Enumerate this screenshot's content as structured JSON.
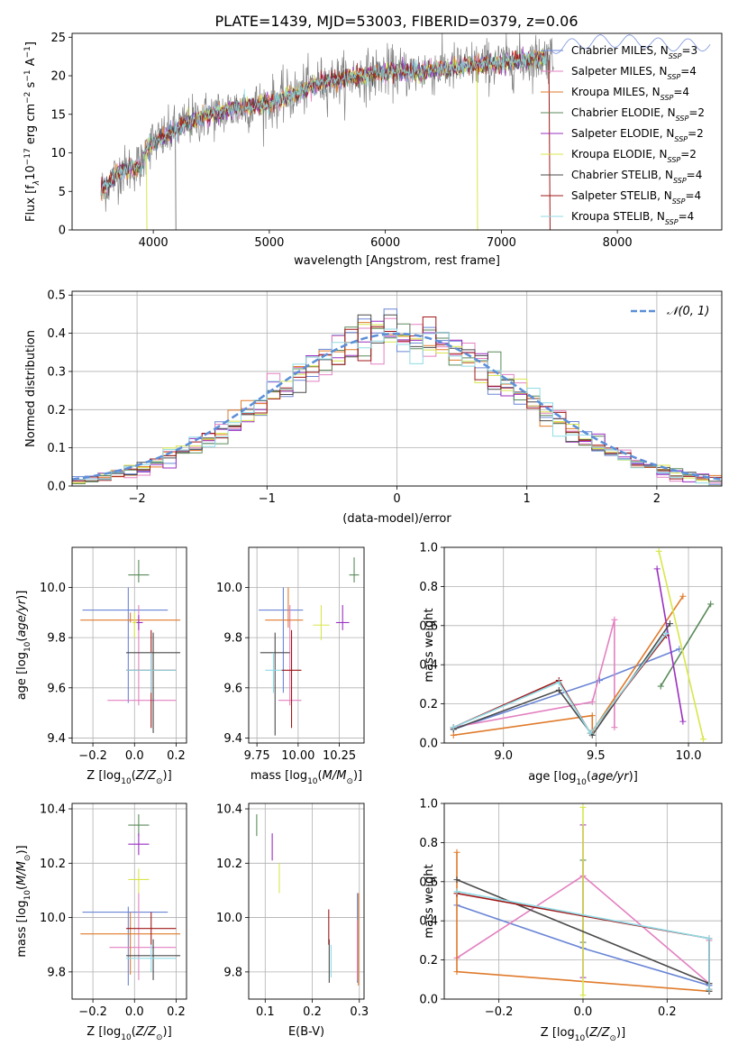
{
  "title": "PLATE=1439, MJD=53003, FIBERID=0379, z=0.06",
  "colors": [
    "#6a86d6",
    "#e380c0",
    "#e07a2a",
    "#5a8a5a",
    "#9b2fc0",
    "#d8e64a",
    "#4a4a4a",
    "#a01818",
    "#8fdbe6"
  ],
  "chart_data": [
    {
      "id": "spectrum",
      "type": "line",
      "title": "PLATE=1439, MJD=53003, FIBERID=0379, z=0.06",
      "xlabel": "wavelength [Angstrom, rest frame]",
      "ylabel_parts": [
        "Flux [f",
        "λ",
        "10",
        "−17",
        " erg cm",
        "−2",
        " s",
        "−1",
        " A",
        "−1",
        "]"
      ],
      "xlim": [
        3300,
        8900
      ],
      "ylim": [
        0,
        25.5
      ],
      "xticks": [
        4000,
        5000,
        6000,
        7000,
        8000
      ],
      "yticks": [
        0,
        5,
        10,
        15,
        20,
        25
      ],
      "legend": "right",
      "series": [
        {
          "name": "Chabrier MILES, N",
          "sub": "SSP",
          "suffix": "=3"
        },
        {
          "name": "Salpeter MILES, N",
          "sub": "SSP",
          "suffix": "=4"
        },
        {
          "name": "Kroupa MILES, N",
          "sub": "SSP",
          "suffix": "=4"
        },
        {
          "name": "Chabrier ELODIE, N",
          "sub": "SSP",
          "suffix": "=2"
        },
        {
          "name": "Salpeter ELODIE, N",
          "sub": "SSP",
          "suffix": "=2"
        },
        {
          "name": "Kroupa ELODIE, N",
          "sub": "SSP",
          "suffix": "=2"
        },
        {
          "name": "Chabrier STELIB, N",
          "sub": "SSP",
          "suffix": "=4"
        },
        {
          "name": "Salpeter STELIB, N",
          "sub": "SSP",
          "suffix": "=4"
        },
        {
          "name": "Kroupa STELIB, N",
          "sub": "SSP",
          "suffix": "=4"
        }
      ],
      "continuum": {
        "x": [
          3550,
          3700,
          3900,
          3950,
          4100,
          4300,
          4500,
          4800,
          5000,
          5200,
          5400,
          5600,
          5800,
          6000,
          6200,
          6400,
          6600,
          6800,
          7000,
          7200,
          7400,
          7600,
          7800,
          8000,
          8200,
          8400,
          8800
        ],
        "y": [
          5,
          7.5,
          8.5,
          11,
          12,
          14,
          15,
          16,
          16.5,
          17.5,
          19,
          19.5,
          20,
          20.5,
          20.5,
          20.8,
          21,
          21.5,
          21.5,
          22,
          22.5,
          23,
          23.5,
          23.5,
          23.5,
          23,
          23
        ]
      },
      "data_range": [
        3550,
        8800
      ]
    },
    {
      "id": "residuals",
      "type": "line",
      "xlabel": "(data-model)/error",
      "ylabel": "Normed distribution",
      "xlim": [
        -2.5,
        2.5
      ],
      "ylim": [
        0,
        0.51
      ],
      "xticks": [
        -2,
        -1,
        0,
        1,
        2
      ],
      "yticks": [
        0.0,
        0.1,
        0.2,
        0.3,
        0.4,
        0.5
      ],
      "grid": true,
      "legend": "top-right",
      "series": [
        {
          "name": "𝒩(0, 1)",
          "style": "dashed",
          "color": "#5b8fd8"
        }
      ],
      "histogram": {
        "bins": 50,
        "range": [
          -2.5,
          2.5
        ]
      }
    },
    {
      "id": "age-vs-Z",
      "type": "scatter",
      "xlabel": "Z [log10(Z/Z☉)]",
      "ylabel": "age  [log10(age/yr)]",
      "xlim": [
        -0.3,
        0.25
      ],
      "ylim": [
        9.38,
        10.16
      ],
      "xticks": [
        -0.2,
        0.0,
        0.2
      ],
      "yticks": [
        9.4,
        9.6,
        9.8,
        10.0
      ],
      "grid": true,
      "points": [
        {
          "x": -0.03,
          "xerr": [
            0.22,
            0.19
          ],
          "y": 9.91,
          "yerr": [
            0.37,
            0.09
          ]
        },
        {
          "x": 0.02,
          "xerr": [
            0.15,
            0.18
          ],
          "y": 9.55,
          "yerr": [
            0.02,
            0.38
          ]
        },
        {
          "x": -0.02,
          "xerr": [
            0.24,
            0.24
          ],
          "y": 9.87,
          "yerr": [
            0.01,
            0.03
          ]
        },
        {
          "x": 0.02,
          "xerr": [
            0.05,
            0.05
          ],
          "y": 10.05,
          "yerr": [
            0.03,
            0.06
          ]
        },
        {
          "x": 0.02,
          "xerr": [
            0.02,
            0.02
          ],
          "y": 9.86,
          "yerr": [
            0.03,
            0.03
          ]
        },
        {
          "x": 0.0,
          "xerr": [
            0.01,
            0.01
          ],
          "y": 9.86,
          "yerr": [
            0.06,
            0.04
          ]
        },
        {
          "x": 0.09,
          "xerr": [
            0.13,
            0.13
          ],
          "y": 9.74,
          "yerr": [
            0.32,
            0.08
          ]
        },
        {
          "x": 0.08,
          "xerr": [
            0.12,
            0.12
          ],
          "y": 9.67,
          "yerr": [
            0.23,
            0.16
          ]
        },
        {
          "x": 0.08,
          "xerr": [
            0.12,
            0.12
          ],
          "y": 9.67,
          "yerr": [
            0.09,
            0.07
          ]
        }
      ]
    },
    {
      "id": "age-vs-mass",
      "type": "scatter",
      "xlabel": "mass [log10(M/M☉)]",
      "xlim": [
        9.7,
        10.4
      ],
      "ylim": [
        9.38,
        10.16
      ],
      "xticks": [
        9.75,
        10.0,
        10.25
      ],
      "yticks": [
        9.4,
        9.6,
        9.8,
        10.0
      ],
      "grid": true,
      "points": [
        {
          "x": 9.91,
          "xerr": [
            0.15,
            0.12
          ],
          "y": 9.91,
          "yerr": [
            0.33,
            0.09
          ]
        },
        {
          "x": 9.95,
          "xerr": [
            0.07,
            0.07
          ],
          "y": 9.55,
          "yerr": [
            0.02,
            0.38
          ]
        },
        {
          "x": 9.94,
          "xerr": [
            0.14,
            0.09
          ],
          "y": 9.87,
          "yerr": [
            0.03,
            0.13
          ]
        },
        {
          "x": 10.34,
          "xerr": [
            0.03,
            0.03
          ],
          "y": 10.05,
          "yerr": [
            0.03,
            0.07
          ]
        },
        {
          "x": 10.27,
          "xerr": [
            0.04,
            0.04
          ],
          "y": 9.86,
          "yerr": [
            0.03,
            0.07
          ]
        },
        {
          "x": 10.14,
          "xerr": [
            0.05,
            0.05
          ],
          "y": 9.85,
          "yerr": [
            0.06,
            0.08
          ]
        },
        {
          "x": 9.86,
          "xerr": [
            0.09,
            0.09
          ],
          "y": 9.74,
          "yerr": [
            0.33,
            0.08
          ]
        },
        {
          "x": 9.96,
          "xerr": [
            0.06,
            0.06
          ],
          "y": 9.67,
          "yerr": [
            0.23,
            0.16
          ]
        },
        {
          "x": 9.85,
          "xerr": [
            0.05,
            0.05
          ],
          "y": 9.67,
          "yerr": [
            0.09,
            0.07
          ]
        }
      ]
    },
    {
      "id": "weight-vs-age",
      "type": "line",
      "xlabel": "age  [log10(age/yr)]",
      "ylabel": "mass weight",
      "xlim": [
        8.68,
        10.18
      ],
      "ylim": [
        0,
        1.0
      ],
      "xticks": [
        9.0,
        9.5,
        10.0
      ],
      "yticks": [
        0.0,
        0.2,
        0.4,
        0.6,
        0.8,
        1.0
      ],
      "grid": true,
      "series": [
        {
          "x": [
            8.73,
            9.52,
            9.95
          ],
          "y": [
            0.07,
            0.32,
            0.48
          ]
        },
        {
          "x": [
            8.73,
            9.48,
            9.6,
            9.6
          ],
          "y": [
            0.08,
            0.21,
            0.63,
            0.08
          ]
        },
        {
          "x": [
            8.73,
            9.48,
            9.48,
            9.97
          ],
          "y": [
            0.04,
            0.14,
            0.06,
            0.75
          ]
        },
        {
          "x": [
            9.85,
            10.12
          ],
          "y": [
            0.29,
            0.71
          ]
        },
        {
          "x": [
            9.83,
            9.97
          ],
          "y": [
            0.89,
            0.11
          ]
        },
        {
          "x": [
            9.84,
            10.08
          ],
          "y": [
            0.98,
            0.02
          ]
        },
        {
          "x": [
            8.73,
            9.3,
            9.48,
            9.9
          ],
          "y": [
            0.07,
            0.27,
            0.04,
            0.61
          ]
        },
        {
          "x": [
            8.73,
            9.3,
            9.47,
            9.88
          ],
          "y": [
            0.08,
            0.32,
            0.05,
            0.55
          ]
        },
        {
          "x": [
            8.73,
            9.3,
            9.47,
            9.88
          ],
          "y": [
            0.08,
            0.31,
            0.05,
            0.56
          ]
        }
      ]
    },
    {
      "id": "mass-vs-Z",
      "type": "scatter",
      "xlabel": "Z [log10(Z/Z☉)]",
      "ylabel": "mass [log10(M/M☉)]",
      "xlim": [
        -0.3,
        0.25
      ],
      "ylim": [
        9.7,
        10.42
      ],
      "xticks": [
        -0.2,
        0.0,
        0.2
      ],
      "yticks": [
        9.8,
        10.0,
        10.2,
        10.4
      ],
      "grid": true,
      "points": [
        {
          "x": -0.03,
          "xerr": [
            0.22,
            0.19
          ],
          "y": 10.02,
          "yerr": [
            0.27,
            0.02
          ]
        },
        {
          "x": 0.02,
          "xerr": [
            0.14,
            0.18
          ],
          "y": 9.89,
          "yerr": [
            0.12,
            0.2
          ]
        },
        {
          "x": -0.02,
          "xerr": [
            0.24,
            0.24
          ],
          "y": 9.94,
          "yerr": [
            0.15,
            0.08
          ]
        },
        {
          "x": 0.02,
          "xerr": [
            0.05,
            0.05
          ],
          "y": 10.34,
          "yerr": [
            0.04,
            0.04
          ]
        },
        {
          "x": 0.02,
          "xerr": [
            0.05,
            0.05
          ],
          "y": 10.27,
          "yerr": [
            0.04,
            0.04
          ]
        },
        {
          "x": 0.02,
          "xerr": [
            0.05,
            0.05
          ],
          "y": 10.14,
          "yerr": [
            0.05,
            0.04
          ]
        },
        {
          "x": 0.09,
          "xerr": [
            0.13,
            0.13
          ],
          "y": 9.86,
          "yerr": [
            0.09,
            0.06
          ]
        },
        {
          "x": 0.08,
          "xerr": [
            0.12,
            0.12
          ],
          "y": 9.96,
          "yerr": [
            0.06,
            0.06
          ]
        },
        {
          "x": 0.08,
          "xerr": [
            0.12,
            0.12
          ],
          "y": 9.85,
          "yerr": [
            0.05,
            0.05
          ]
        }
      ]
    },
    {
      "id": "mass-vs-ebv",
      "type": "scatter",
      "xlabel": "E(B-V)",
      "xlim": [
        0.065,
        0.31
      ],
      "ylim": [
        9.7,
        10.42
      ],
      "xticks": [
        0.1,
        0.2,
        0.3
      ],
      "yticks": [
        9.8,
        10.0,
        10.2,
        10.4
      ],
      "grid": true,
      "points": [
        {
          "x": 0.296,
          "y": 9.9,
          "yerr": [
            0.14,
            0.19
          ]
        },
        {
          "x": 0.296,
          "y": 9.9,
          "yerr": [
            0.13,
            0.09
          ]
        },
        {
          "x": 0.298,
          "y": 9.92,
          "yerr": [
            0.17,
            0.17
          ]
        },
        {
          "x": 0.082,
          "y": 10.34,
          "yerr": [
            0.04,
            0.04
          ]
        },
        {
          "x": 0.115,
          "y": 10.26,
          "yerr": [
            0.05,
            0.05
          ]
        },
        {
          "x": 0.13,
          "y": 10.15,
          "yerr": [
            0.06,
            0.05
          ]
        },
        {
          "x": 0.236,
          "y": 9.85,
          "yerr": [
            0.09,
            0.07
          ]
        },
        {
          "x": 0.235,
          "y": 9.96,
          "yerr": [
            0.06,
            0.07
          ]
        },
        {
          "x": 0.24,
          "y": 9.85,
          "yerr": [
            0.07,
            0.05
          ]
        }
      ]
    },
    {
      "id": "weight-vs-Z",
      "type": "line",
      "xlabel": "Z [log10(Z/Z☉)]",
      "ylabel": "mass weight",
      "xlim": [
        -0.33,
        0.33
      ],
      "ylim": [
        0,
        1.0
      ],
      "xticks": [
        -0.2,
        0.0,
        0.2
      ],
      "yticks": [
        0.0,
        0.2,
        0.4,
        0.6,
        0.8,
        1.0
      ],
      "grid": true,
      "series": [
        {
          "x": [
            -0.3,
            0.0,
            0.3,
            0.3
          ],
          "y": [
            0.48,
            0.26,
            0.07,
            0.07
          ]
        },
        {
          "x": [
            -0.3,
            0.0,
            0.3,
            0.3
          ],
          "y": [
            0.21,
            0.63,
            0.08,
            0.3
          ]
        },
        {
          "x": [
            -0.3,
            -0.3,
            0.3
          ],
          "y": [
            0.75,
            0.14,
            0.04
          ]
        },
        {
          "x": [
            0.0,
            0.0
          ],
          "y": [
            0.29,
            0.71
          ]
        },
        {
          "x": [
            0.0,
            0.0
          ],
          "y": [
            0.89,
            0.11
          ]
        },
        {
          "x": [
            0.0,
            0.0
          ],
          "y": [
            0.98,
            0.02
          ]
        },
        {
          "x": [
            -0.3,
            0.3,
            0.3
          ],
          "y": [
            0.61,
            0.08,
            0.04
          ]
        },
        {
          "x": [
            -0.3,
            0.3,
            0.3
          ],
          "y": [
            0.54,
            0.31,
            0.05
          ]
        },
        {
          "x": [
            -0.3,
            0.3,
            0.3
          ],
          "y": [
            0.55,
            0.31,
            0.05
          ]
        }
      ]
    }
  ]
}
